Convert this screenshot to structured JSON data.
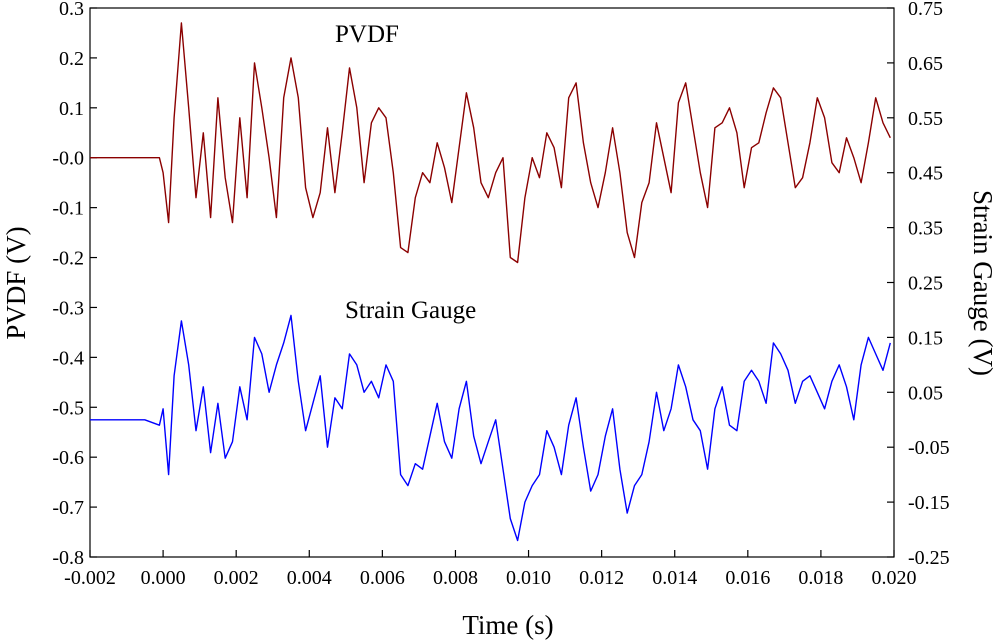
{
  "chart_data": {
    "type": "line",
    "xlabel": "Time (s)",
    "ylabel_left": "PVDF (V)",
    "ylabel_right": "Strain Gauge (V)",
    "xlim": [
      -0.002,
      0.02
    ],
    "ylim_left": [
      -0.8,
      0.3
    ],
    "ylim_right": [
      -0.25,
      0.75
    ],
    "grid": false,
    "x_ticks": [
      -0.002,
      0.0,
      0.002,
      0.004,
      0.006,
      0.008,
      0.01,
      0.012,
      0.014,
      0.016,
      0.018,
      0.02
    ],
    "x_tick_labels": [
      "-0.002",
      "0.000",
      "0.002",
      "0.004",
      "0.006",
      "0.008",
      "0.010",
      "0.012",
      "0.014",
      "0.016",
      "0.018",
      "0.020"
    ],
    "y_left_ticks": [
      0.3,
      0.2,
      0.1,
      0.0,
      -0.1,
      -0.2,
      -0.3,
      -0.4,
      -0.5,
      -0.6,
      -0.7,
      -0.8
    ],
    "y_left_tick_labels": [
      "0.3",
      "0.2",
      "0.1",
      "-0.0",
      "-0.1",
      "-0.2",
      "-0.3",
      "-0.4",
      "-0.5",
      "-0.6",
      "-0.7",
      "-0.8"
    ],
    "y_right_ticks": [
      0.75,
      0.65,
      0.55,
      0.45,
      0.35,
      0.25,
      0.15,
      0.05,
      -0.05,
      -0.15,
      -0.25
    ],
    "y_right_tick_labels": [
      "0.75",
      "0.65",
      "0.55",
      "0.45",
      "0.35",
      "0.25",
      "0.15",
      "0.05",
      "-0.05",
      "-0.15",
      "-0.25"
    ],
    "series": [
      {
        "name": "PVDF",
        "label": "PVDF",
        "axis": "left",
        "color": "#8b0000",
        "x": [
          -0.002,
          -0.0005,
          -0.0001,
          0.0,
          0.00015,
          0.0003,
          0.0005,
          0.0007,
          0.0009,
          0.0011,
          0.0013,
          0.0015,
          0.0017,
          0.0019,
          0.0021,
          0.0023,
          0.0025,
          0.0027,
          0.0029,
          0.0031,
          0.0033,
          0.0035,
          0.0037,
          0.0039,
          0.0041,
          0.0043,
          0.0045,
          0.0047,
          0.0049,
          0.0051,
          0.0053,
          0.0055,
          0.0057,
          0.0059,
          0.0061,
          0.0063,
          0.0065,
          0.0067,
          0.0069,
          0.0071,
          0.0073,
          0.0075,
          0.0077,
          0.0079,
          0.0081,
          0.0083,
          0.0085,
          0.0087,
          0.0089,
          0.0091,
          0.0093,
          0.0095,
          0.0097,
          0.0099,
          0.0101,
          0.0103,
          0.0105,
          0.0107,
          0.0109,
          0.0111,
          0.0113,
          0.0115,
          0.0117,
          0.0119,
          0.0121,
          0.0123,
          0.0125,
          0.0127,
          0.0129,
          0.0131,
          0.0133,
          0.0135,
          0.0137,
          0.0139,
          0.0141,
          0.0143,
          0.0145,
          0.0147,
          0.0149,
          0.0151,
          0.0153,
          0.0155,
          0.0157,
          0.0159,
          0.0161,
          0.0163,
          0.0165,
          0.0167,
          0.0169,
          0.0171,
          0.0173,
          0.0175,
          0.0177,
          0.0179,
          0.0181,
          0.0183,
          0.0185,
          0.0187,
          0.0189,
          0.0191,
          0.0193,
          0.0195,
          0.0197,
          0.0199
        ],
        "values": [
          0.0,
          0.0,
          0.0,
          -0.03,
          -0.13,
          0.08,
          0.27,
          0.1,
          -0.08,
          0.05,
          -0.12,
          0.12,
          -0.04,
          -0.13,
          0.08,
          -0.08,
          0.19,
          0.1,
          0.0,
          -0.12,
          0.12,
          0.2,
          0.12,
          -0.06,
          -0.12,
          -0.07,
          0.06,
          -0.07,
          0.05,
          0.18,
          0.1,
          -0.05,
          0.07,
          0.1,
          0.08,
          -0.03,
          -0.18,
          -0.19,
          -0.08,
          -0.03,
          -0.05,
          0.03,
          -0.02,
          -0.09,
          0.02,
          0.13,
          0.06,
          -0.05,
          -0.08,
          -0.03,
          0.0,
          -0.2,
          -0.21,
          -0.08,
          0.0,
          -0.04,
          0.05,
          0.02,
          -0.06,
          0.12,
          0.15,
          0.03,
          -0.05,
          -0.1,
          -0.03,
          0.06,
          -0.03,
          -0.15,
          -0.2,
          -0.09,
          -0.05,
          0.07,
          0.0,
          -0.07,
          0.11,
          0.15,
          0.06,
          -0.03,
          -0.1,
          0.06,
          0.07,
          0.1,
          0.05,
          -0.06,
          0.02,
          0.03,
          0.09,
          0.14,
          0.12,
          0.03,
          -0.06,
          -0.04,
          0.03,
          0.12,
          0.08,
          -0.01,
          -0.03,
          0.04,
          0.0,
          -0.05,
          0.03,
          0.12,
          0.07,
          0.04
        ]
      },
      {
        "name": "Strain Gauge",
        "label": "Strain Gauge",
        "axis": "right",
        "color": "#0000ff",
        "x": [
          -0.002,
          -0.0005,
          -0.0001,
          0.0,
          0.00015,
          0.0003,
          0.0005,
          0.0007,
          0.0009,
          0.0011,
          0.0013,
          0.0015,
          0.0017,
          0.0019,
          0.0021,
          0.0023,
          0.0025,
          0.0027,
          0.0029,
          0.0031,
          0.0033,
          0.0035,
          0.0037,
          0.0039,
          0.0041,
          0.0043,
          0.0045,
          0.0047,
          0.0049,
          0.0051,
          0.0053,
          0.0055,
          0.0057,
          0.0059,
          0.0061,
          0.0063,
          0.0065,
          0.0067,
          0.0069,
          0.0071,
          0.0073,
          0.0075,
          0.0077,
          0.0079,
          0.0081,
          0.0083,
          0.0085,
          0.0087,
          0.0089,
          0.0091,
          0.0093,
          0.0095,
          0.0097,
          0.0099,
          0.0101,
          0.0103,
          0.0105,
          0.0107,
          0.0109,
          0.0111,
          0.0113,
          0.0115,
          0.0117,
          0.0119,
          0.0121,
          0.0123,
          0.0125,
          0.0127,
          0.0129,
          0.0131,
          0.0133,
          0.0135,
          0.0137,
          0.0139,
          0.0141,
          0.0143,
          0.0145,
          0.0147,
          0.0149,
          0.0151,
          0.0153,
          0.0155,
          0.0157,
          0.0159,
          0.0161,
          0.0163,
          0.0165,
          0.0167,
          0.0169,
          0.0171,
          0.0173,
          0.0175,
          0.0177,
          0.0179,
          0.0181,
          0.0183,
          0.0185,
          0.0187,
          0.0189,
          0.0191,
          0.0193,
          0.0195,
          0.0197,
          0.0199
        ],
        "values": [
          0.0,
          0.0,
          -0.01,
          0.02,
          -0.1,
          0.08,
          0.18,
          0.1,
          -0.02,
          0.06,
          -0.06,
          0.03,
          -0.07,
          -0.04,
          0.06,
          0.0,
          0.15,
          0.12,
          0.05,
          0.1,
          0.14,
          0.19,
          0.07,
          -0.02,
          0.03,
          0.08,
          -0.05,
          0.04,
          0.02,
          0.12,
          0.1,
          0.05,
          0.07,
          0.04,
          0.1,
          0.07,
          -0.1,
          -0.12,
          -0.08,
          -0.09,
          -0.03,
          0.03,
          -0.04,
          -0.07,
          0.02,
          0.07,
          -0.03,
          -0.08,
          -0.04,
          0.0,
          -0.09,
          -0.18,
          -0.22,
          -0.15,
          -0.12,
          -0.1,
          -0.02,
          -0.05,
          -0.1,
          -0.01,
          0.04,
          -0.05,
          -0.13,
          -0.1,
          -0.03,
          0.02,
          -0.09,
          -0.17,
          -0.12,
          -0.1,
          -0.04,
          0.05,
          -0.02,
          0.02,
          0.1,
          0.06,
          0.0,
          -0.02,
          -0.09,
          0.02,
          0.06,
          -0.01,
          -0.02,
          0.07,
          0.09,
          0.07,
          0.03,
          0.14,
          0.12,
          0.09,
          0.03,
          0.07,
          0.08,
          0.05,
          0.02,
          0.07,
          0.1,
          0.06,
          0.0,
          0.1,
          0.15,
          0.12,
          0.09,
          0.14
        ]
      }
    ]
  }
}
